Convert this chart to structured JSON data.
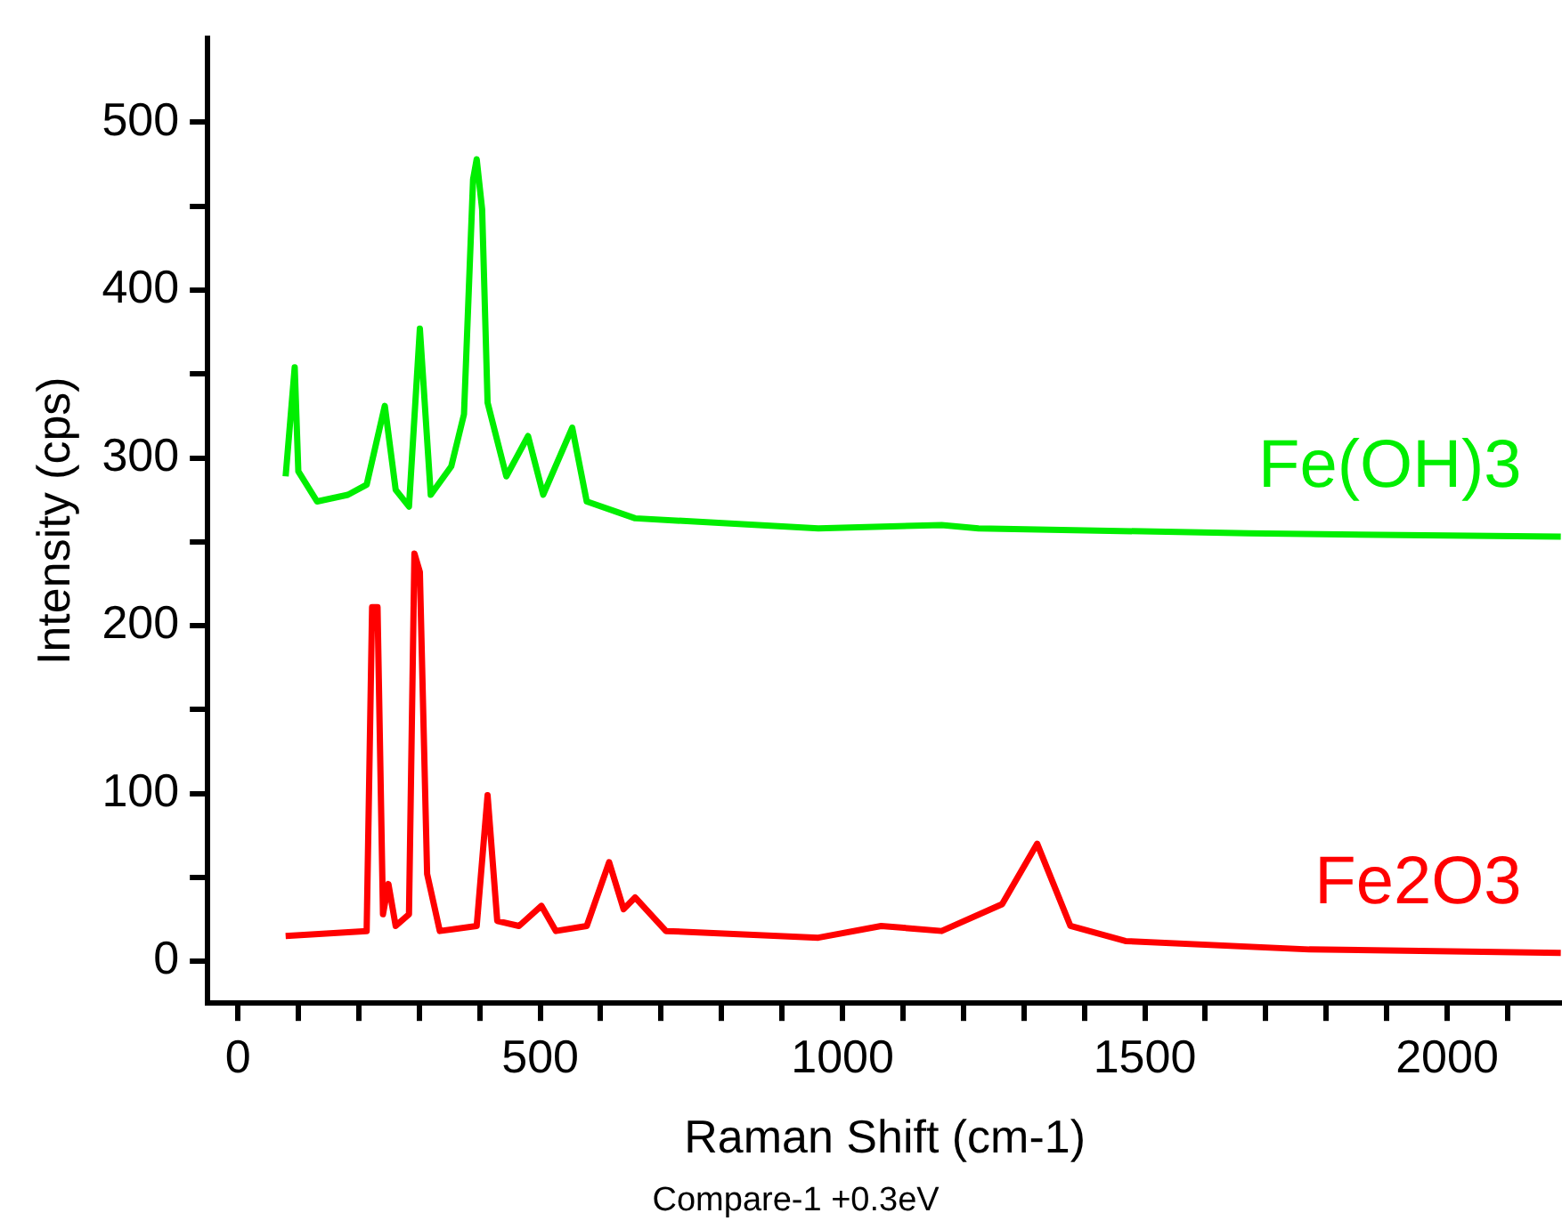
{
  "chart_data": {
    "type": "line",
    "xlabel": "Raman Shift (cm-1)",
    "ylabel": "Intensity (cps)",
    "annotations": [
      "Compare-1 +0.3eV"
    ],
    "xlim": [
      -50,
      2190
    ],
    "ylim": [
      -25,
      550
    ],
    "xticks": [
      0,
      {
        "value": 100,
        "label": null
      },
      {
        "value": 200,
        "label": null
      },
      {
        "value": 300,
        "label": null
      },
      {
        "value": 400,
        "label": null
      },
      500,
      {
        "value": 600,
        "label": null
      },
      {
        "value": 700,
        "label": null
      },
      {
        "value": 800,
        "label": null
      },
      {
        "value": 900,
        "label": null
      },
      1000,
      {
        "value": 1100,
        "label": null
      },
      {
        "value": 1200,
        "label": null
      },
      {
        "value": 1300,
        "label": null
      },
      {
        "value": 1400,
        "label": null
      },
      1500,
      {
        "value": 1600,
        "label": null
      },
      {
        "value": 1700,
        "label": null
      },
      {
        "value": 1800,
        "label": null
      },
      {
        "value": 1900,
        "label": null
      },
      2000,
      {
        "value": 2100,
        "label": null
      }
    ],
    "yticks": [
      0,
      {
        "value": 50,
        "label": null
      },
      100,
      {
        "value": 150,
        "label": null
      },
      200,
      {
        "value": 250,
        "label": null
      },
      300,
      {
        "value": 350,
        "label": null
      },
      400,
      {
        "value": 450,
        "label": null
      },
      500
    ],
    "grid": false,
    "legend": false,
    "marker": "none",
    "line_style": "solid",
    "series": [
      {
        "name": "Fe(OH)3",
        "color": "#00ee00",
        "x": [
          79,
          94,
          100,
          131,
          182,
          213,
          243,
          261,
          283,
          301,
          319,
          353,
          374,
          389,
          395,
          404,
          413,
          444,
          480,
          505,
          553,
          577,
          657,
          960,
          1164,
          1225,
          1672,
          2188
        ],
        "values": [
          289,
          354,
          292,
          274,
          278,
          284,
          331,
          281,
          271,
          377,
          278,
          295,
          326,
          466,
          478,
          448,
          333,
          289,
          313,
          278,
          318,
          274,
          264,
          258,
          260,
          258,
          255,
          253
        ]
      },
      {
        "name": "Fe2O3",
        "color": "#ff0000",
        "x": [
          79,
          213,
          222,
          231,
          240,
          249,
          261,
          283,
          292,
          301,
          313,
          334,
          395,
          413,
          429,
          465,
          502,
          526,
          577,
          614,
          638,
          657,
          708,
          960,
          1064,
          1164,
          1264,
          1322,
          1377,
          1468,
          1772,
          2188
        ],
        "values": [
          15,
          18,
          211,
          211,
          28,
          46,
          21,
          28,
          243,
          232,
          52,
          18,
          21,
          99,
          24,
          21,
          33,
          18,
          21,
          59,
          31,
          38,
          18,
          14,
          21,
          18,
          34,
          70,
          21,
          12,
          7,
          5
        ]
      }
    ]
  }
}
